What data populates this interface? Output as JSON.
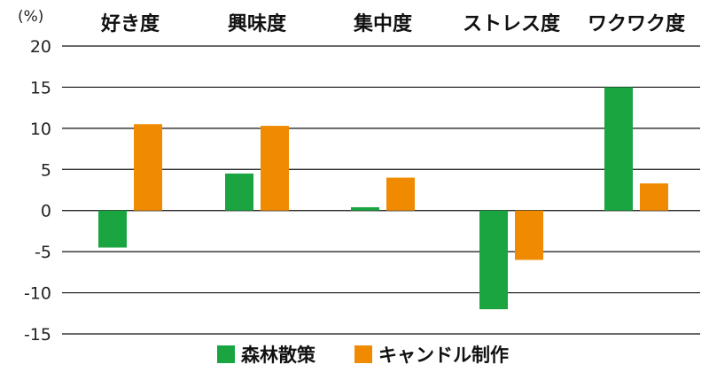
{
  "chart_data": {
    "type": "bar",
    "unit_label": "(%)",
    "categories": [
      "好き度",
      "興味度",
      "集中度",
      "ストレス度",
      "ワクワク度"
    ],
    "series": [
      {
        "name": "森林散策",
        "color": "#1aa541",
        "values": [
          -4.5,
          4.5,
          0.4,
          -12.0,
          15.0
        ]
      },
      {
        "name": "キャンドル制作",
        "color": "#f08a00",
        "values": [
          10.5,
          10.3,
          4.0,
          -6.0,
          3.3
        ]
      }
    ],
    "yticks": [
      20,
      15,
      10,
      5,
      0,
      -5,
      -10,
      -15
    ],
    "ylim": [
      -15,
      20
    ],
    "grid": true,
    "legend_position": "bottom-center"
  }
}
